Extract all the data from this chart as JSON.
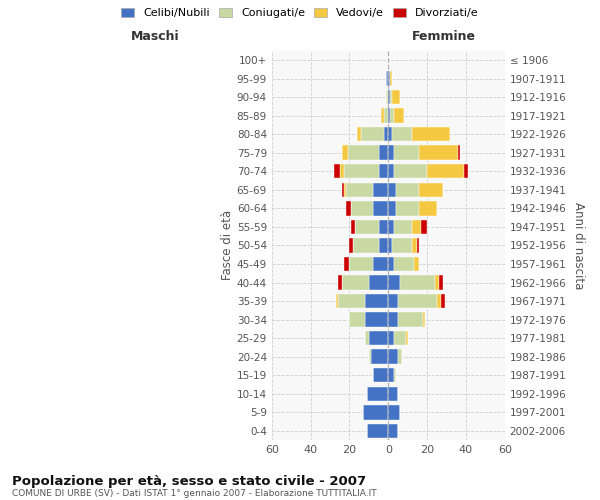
{
  "age_groups": [
    "0-4",
    "5-9",
    "10-14",
    "15-19",
    "20-24",
    "25-29",
    "30-34",
    "35-39",
    "40-44",
    "45-49",
    "50-54",
    "55-59",
    "60-64",
    "65-69",
    "70-74",
    "75-79",
    "80-84",
    "85-89",
    "90-94",
    "95-99",
    "100+"
  ],
  "birth_years": [
    "2002-2006",
    "1997-2001",
    "1992-1996",
    "1987-1991",
    "1982-1986",
    "1977-1981",
    "1972-1976",
    "1967-1971",
    "1962-1966",
    "1957-1961",
    "1952-1956",
    "1947-1951",
    "1942-1946",
    "1937-1941",
    "1932-1936",
    "1927-1931",
    "1922-1926",
    "1917-1921",
    "1912-1916",
    "1907-1911",
    "≤ 1906"
  ],
  "males": {
    "celibi": [
      11,
      13,
      11,
      8,
      9,
      10,
      12,
      12,
      10,
      8,
      5,
      5,
      8,
      8,
      5,
      5,
      2,
      0,
      0,
      1,
      0
    ],
    "coniugati": [
      0,
      0,
      0,
      0,
      1,
      2,
      8,
      14,
      14,
      12,
      13,
      12,
      11,
      14,
      18,
      16,
      12,
      2,
      1,
      0,
      0
    ],
    "vedovi": [
      0,
      0,
      0,
      0,
      0,
      0,
      0,
      1,
      0,
      0,
      0,
      0,
      0,
      1,
      2,
      3,
      2,
      2,
      0,
      0,
      0
    ],
    "divorziati": [
      0,
      0,
      0,
      0,
      0,
      0,
      0,
      0,
      2,
      3,
      2,
      2,
      3,
      1,
      3,
      0,
      0,
      0,
      0,
      0,
      0
    ]
  },
  "females": {
    "nubili": [
      5,
      6,
      5,
      3,
      5,
      3,
      5,
      5,
      6,
      3,
      2,
      3,
      4,
      4,
      3,
      3,
      2,
      1,
      1,
      1,
      0
    ],
    "coniugate": [
      0,
      0,
      0,
      1,
      2,
      6,
      13,
      20,
      18,
      10,
      10,
      9,
      12,
      12,
      17,
      13,
      10,
      2,
      1,
      0,
      0
    ],
    "vedove": [
      0,
      0,
      0,
      0,
      0,
      1,
      1,
      2,
      2,
      3,
      3,
      5,
      9,
      12,
      19,
      20,
      20,
      5,
      4,
      1,
      0
    ],
    "divorziate": [
      0,
      0,
      0,
      0,
      0,
      0,
      0,
      2,
      2,
      0,
      1,
      3,
      0,
      0,
      2,
      1,
      0,
      0,
      0,
      0,
      0
    ]
  },
  "colors": {
    "celibi": "#4472C4",
    "coniugati": "#C8D9A4",
    "vedovi": "#F5C842",
    "divorziati": "#CC0000"
  },
  "xlim": 60,
  "title": "Popolazione per età, sesso e stato civile - 2007",
  "subtitle": "COMUNE DI URBE (SV) - Dati ISTAT 1° gennaio 2007 - Elaborazione TUTTITALIA.IT",
  "ylabel_left": "Fasce di età",
  "ylabel_right": "Anni di nascita",
  "xlabel_left": "Maschi",
  "xlabel_right": "Femmine",
  "legend_labels": [
    "Celibi/Nubili",
    "Coniugati/e",
    "Vedovi/e",
    "Divorziati/e"
  ],
  "plot_bg": "#f8f8f8"
}
